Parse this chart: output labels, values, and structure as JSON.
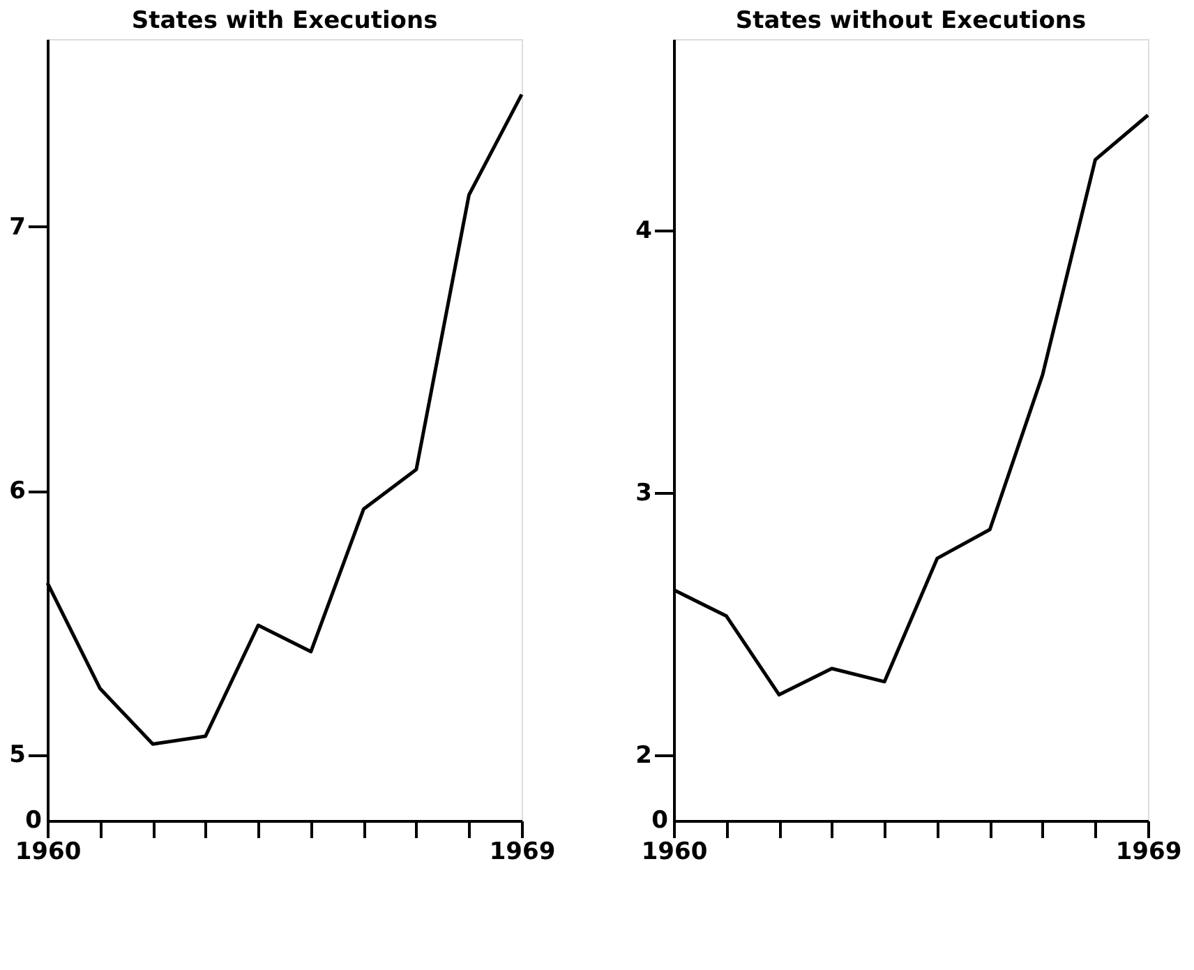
{
  "chart_data": [
    {
      "type": "line",
      "title": "States with Executions",
      "x": [
        1960,
        1961,
        1962,
        1963,
        1964,
        1965,
        1966,
        1967,
        1968,
        1969
      ],
      "series": [
        {
          "color": "#000000",
          "values": [
            5.65,
            5.25,
            5.04,
            5.07,
            5.49,
            5.39,
            5.93,
            6.08,
            7.12,
            7.5
          ]
        }
      ],
      "xlim": [
        1960,
        1969
      ],
      "xticks": [
        1960,
        {
          "value": 1961,
          "label": null
        },
        {
          "value": 1962,
          "label": null
        },
        {
          "value": 1963,
          "label": null
        },
        {
          "value": 1964,
          "label": null
        },
        {
          "value": 1965,
          "label": null
        },
        {
          "value": 1966,
          "label": null
        },
        {
          "value": 1967,
          "label": null
        },
        {
          "value": 1968,
          "label": null
        },
        1969
      ],
      "ylim": [
        4.75,
        7.71
      ],
      "yticks": [
        5,
        6,
        7
      ],
      "annotations": [
        "0"
      ],
      "grid": false,
      "legend": false,
      "marker": "none",
      "line_style": "solid"
    },
    {
      "type": "line",
      "title": "States without Executions",
      "x": [
        1960,
        1961,
        1962,
        1963,
        1964,
        1965,
        1966,
        1967,
        1968,
        1969
      ],
      "series": [
        {
          "color": "#000000",
          "values": [
            2.63,
            2.53,
            2.23,
            2.33,
            2.28,
            2.75,
            2.86,
            3.45,
            4.27,
            4.44
          ]
        }
      ],
      "xlim": [
        1960,
        1969
      ],
      "xticks": [
        1960,
        {
          "value": 1961,
          "label": null
        },
        {
          "value": 1962,
          "label": null
        },
        {
          "value": 1963,
          "label": null
        },
        {
          "value": 1964,
          "label": null
        },
        {
          "value": 1965,
          "label": null
        },
        {
          "value": 1966,
          "label": null
        },
        {
          "value": 1967,
          "label": null
        },
        {
          "value": 1968,
          "label": null
        },
        1969
      ],
      "ylim": [
        1.75,
        4.73
      ],
      "yticks": [
        2,
        3,
        4
      ],
      "annotations": [
        "0"
      ],
      "grid": false,
      "legend": false,
      "marker": "none",
      "line_style": "solid"
    }
  ]
}
